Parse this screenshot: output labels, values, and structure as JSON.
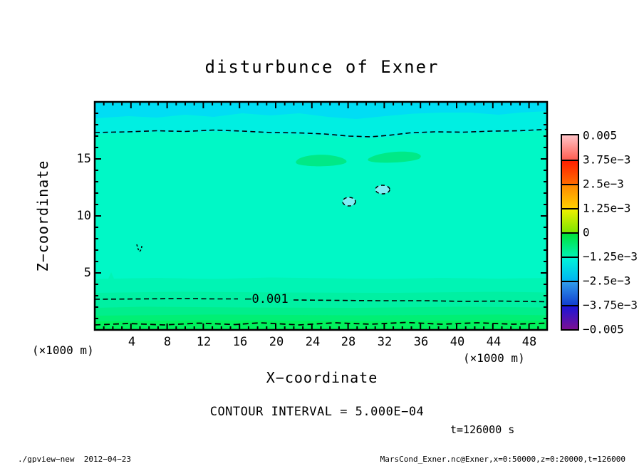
{
  "title": "disturbunce of Exner",
  "axes": {
    "x": {
      "label": "X−coordinate",
      "unit": "(×1000 m)",
      "tick_labels": [
        "4",
        "8",
        "12",
        "16",
        "20",
        "24",
        "28",
        "32",
        "36",
        "40",
        "44",
        "48"
      ]
    },
    "y": {
      "label": "Z−coordinate",
      "unit": "(×1000 m)",
      "tick_labels": [
        "15",
        "10",
        "5"
      ]
    }
  },
  "colorbar": {
    "labels": [
      "0.005",
      "3.75e−3",
      "2.5e−3",
      "1.25e−3",
      "0",
      "−1.25e−3",
      "−2.5e−3",
      "−3.75e−3",
      "−0.005"
    ],
    "segments": [
      [
        "#ffc2c6",
        "#ff5f52"
      ],
      [
        "#ff2000",
        "#ff6b00"
      ],
      [
        "#ff8a00",
        "#ffcf00"
      ],
      [
        "#eff000",
        "#7ee600"
      ],
      [
        "#00e23a",
        "#00f2b2"
      ],
      [
        "#00f5d8",
        "#00b4f2"
      ],
      [
        "#2f9ceb",
        "#123fd0"
      ],
      [
        "#1b16d8",
        "#7c1093"
      ]
    ]
  },
  "plot": {
    "colors": {
      "band_top": "#00ddf4",
      "band_upper": "#00efe2",
      "field_main": "#00f8c6",
      "band_b1": "#00f4b4",
      "band_b2": "#00f0a2",
      "band_b3": "#00ee8c",
      "band_b4": "#00ef74",
      "band_b5": "#00f25c",
      "blob_green": "#00e987",
      "blob_cyan": "#80eef5"
    }
  },
  "annotations": {
    "contour_label": "−0.001",
    "contour_interval": "CONTOUR INTERVAL = 5.000E−04",
    "time": "t=126000 s"
  },
  "footer": {
    "left": "./gpview−new  2012−04−23",
    "right": "MarsCond_Exner.nc@Exner,x=0:50000,z=0:20000,t=126000"
  },
  "chart_data": {
    "type": "heatmap",
    "subtype": "filled-contour-with-dashed-negative-contours",
    "title": "disturbunce of Exner",
    "xlabel": "X−coordinate",
    "ylabel": "Z−coordinate",
    "x_unit": "×1000 m",
    "y_unit": "×1000 m",
    "xlim": [
      0,
      50
    ],
    "ylim": [
      0,
      20
    ],
    "x_ticks": [
      4,
      8,
      12,
      16,
      20,
      24,
      28,
      32,
      36,
      40,
      44,
      48
    ],
    "y_ticks": [
      5,
      10,
      15
    ],
    "contour_interval": 0.0005,
    "tone_scale_levels": [
      -0.005,
      -0.00375,
      -0.0025,
      -0.00125,
      0,
      0.00125,
      0.0025,
      0.00375,
      0.005
    ],
    "time": "t=126000 s",
    "field_profile_z_vs_value": [
      {
        "z_km": 19.7,
        "value": -0.00215
      },
      {
        "z_km": 18.0,
        "value": -0.00185
      },
      {
        "z_km": 17.3,
        "value": -0.002,
        "note": "dashed contour line, slightly wavy"
      },
      {
        "z_km": 12.0,
        "value": -0.0015
      },
      {
        "z_km": 5.0,
        "value": -0.00135
      },
      {
        "z_km": 4.4,
        "value": -0.00125
      },
      {
        "z_km": 3.3,
        "value": -0.00115
      },
      {
        "z_km": 2.7,
        "value": -0.001,
        "note": "dashed contour line labeled −0.001"
      },
      {
        "z_km": 2.0,
        "value": -0.00085
      },
      {
        "z_km": 1.3,
        "value": -0.0007
      },
      {
        "z_km": 0.8,
        "value": -0.00055
      },
      {
        "z_km": 0.5,
        "value": -0.0005,
        "note": "dashed contour line just above ground"
      },
      {
        "z_km": 0.2,
        "value": -0.0003
      }
    ],
    "local_features": [
      {
        "x_km": 25.0,
        "z_km": 15.0,
        "note": "elongated slightly-greener patch (≈ −1.2e-3)"
      },
      {
        "x_km": 33.0,
        "z_km": 15.2,
        "note": "elongated slightly-greener patch (≈ −1.2e-3)"
      },
      {
        "x_km": 28.1,
        "z_km": 11.3,
        "note": "small cyan spot with partial dashed contour (≈ −1.6e-3)"
      },
      {
        "x_km": 31.7,
        "z_km": 12.4,
        "note": "small cyan spot with partial dashed contour (≈ −1.6e-3)"
      },
      {
        "x_km": 4.7,
        "z_km": 7.2,
        "note": "tiny dashed contour mark"
      }
    ],
    "legend_position": "right colorbar",
    "grid": false
  }
}
